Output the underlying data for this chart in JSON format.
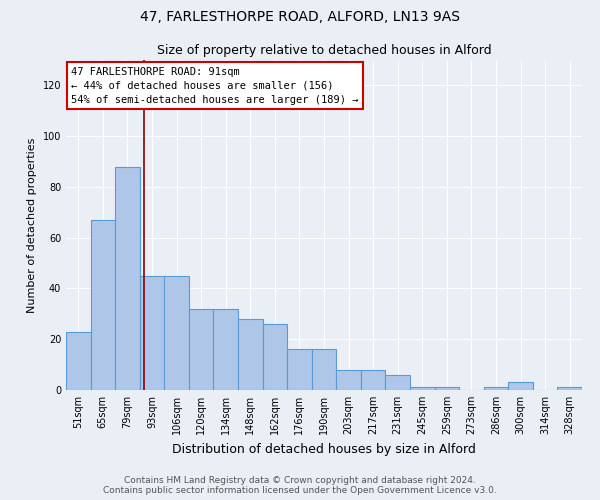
{
  "title": "47, FARLESTHORPE ROAD, ALFORD, LN13 9AS",
  "subtitle": "Size of property relative to detached houses in Alford",
  "xlabel": "Distribution of detached houses by size in Alford",
  "ylabel": "Number of detached properties",
  "footer_line1": "Contains HM Land Registry data © Crown copyright and database right 2024.",
  "footer_line2": "Contains public sector information licensed under the Open Government Licence v3.0.",
  "annotation_line1": "47 FARLESTHORPE ROAD: 91sqm",
  "annotation_line2": "← 44% of detached houses are smaller (156)",
  "annotation_line3": "54% of semi-detached houses are larger (189) →",
  "bar_labels": [
    "51sqm",
    "65sqm",
    "79sqm",
    "93sqm",
    "106sqm",
    "120sqm",
    "134sqm",
    "148sqm",
    "162sqm",
    "176sqm",
    "190sqm",
    "203sqm",
    "217sqm",
    "231sqm",
    "245sqm",
    "259sqm",
    "273sqm",
    "286sqm",
    "300sqm",
    "314sqm",
    "328sqm"
  ],
  "bar_values": [
    23,
    67,
    88,
    45,
    45,
    32,
    32,
    28,
    26,
    16,
    16,
    8,
    8,
    6,
    1,
    1,
    0,
    1,
    3,
    0,
    1
  ],
  "bar_color": "#aec6e8",
  "bar_edgecolor": "#5b9bd5",
  "bar_linewidth": 0.8,
  "property_line_x": 2.667,
  "property_line_color": "#8b0000",
  "ylim": [
    0,
    130
  ],
  "yticks": [
    0,
    20,
    40,
    60,
    80,
    100,
    120
  ],
  "bg_color": "#eaeef5",
  "plot_bg_color": "#eaeef5",
  "grid_color": "#ffffff",
  "annotation_box_color": "#ffffff",
  "annotation_box_edgecolor": "#cc0000",
  "title_fontsize": 10,
  "subtitle_fontsize": 9,
  "xlabel_fontsize": 9,
  "ylabel_fontsize": 8,
  "tick_fontsize": 7,
  "annotation_fontsize": 7.5,
  "footer_fontsize": 6.5
}
